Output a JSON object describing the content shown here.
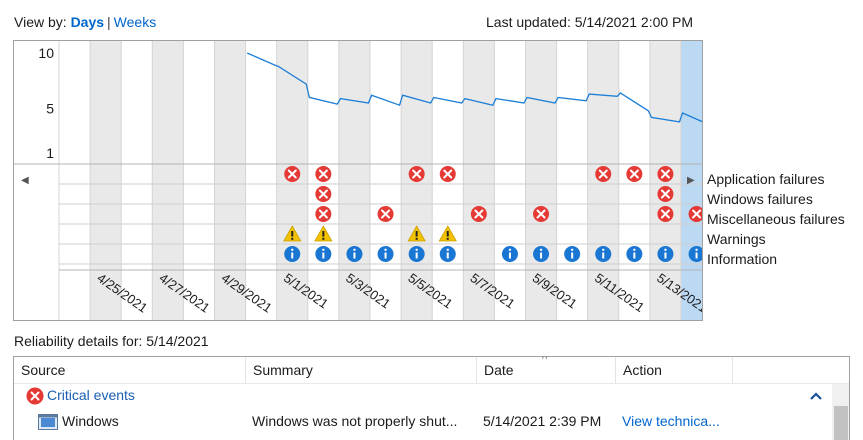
{
  "header": {
    "view_by_label": "View by:",
    "view_days": "Days",
    "view_separator": "|",
    "view_weeks": "Weeks",
    "last_updated": "Last updated: 5/14/2021 2:00 PM"
  },
  "chart_data": {
    "type": "line",
    "y_ticks": [
      "10",
      "5",
      "1"
    ],
    "ylim": [
      1,
      10
    ],
    "dates": [
      "4/24/2021",
      "4/25/2021",
      "4/26/2021",
      "4/27/2021",
      "4/28/2021",
      "4/29/2021",
      "4/30/2021",
      "5/1/2021",
      "5/2/2021",
      "5/3/2021",
      "5/4/2021",
      "5/5/2021",
      "5/6/2021",
      "5/7/2021",
      "5/8/2021",
      "5/9/2021",
      "5/10/2021",
      "5/11/2021",
      "5/12/2021",
      "5/13/2021",
      "5/14/2021"
    ],
    "x_tick_labels": [
      "4/25/2021",
      "4/27/2021",
      "4/29/2021",
      "5/1/2021",
      "5/3/2021",
      "5/5/2021",
      "5/7/2021",
      "5/9/2021",
      "5/11/2021",
      "5/13/2021"
    ],
    "stability_index": [
      [
        "4/30/2021",
        10.0
      ],
      [
        "4/30/2021",
        8.9
      ],
      [
        "5/1/2021",
        8.8
      ],
      [
        "5/1/2021",
        7.2
      ],
      [
        "5/2/2021",
        6.0
      ],
      [
        "5/2/2021",
        5.4
      ],
      [
        "5/3/2021",
        5.9
      ],
      [
        "5/3/2021",
        5.5
      ],
      [
        "5/4/2021",
        6.2
      ],
      [
        "5/4/2021",
        5.3
      ],
      [
        "5/5/2021",
        6.2
      ],
      [
        "5/5/2021",
        5.5
      ],
      [
        "5/6/2021",
        6.0
      ],
      [
        "5/6/2021",
        5.5
      ],
      [
        "5/7/2021",
        5.9
      ],
      [
        "5/7/2021",
        5.3
      ],
      [
        "5/8/2021",
        5.9
      ],
      [
        "5/8/2021",
        5.5
      ],
      [
        "5/9/2021",
        6.0
      ],
      [
        "5/9/2021",
        5.5
      ],
      [
        "5/10/2021",
        6.0
      ],
      [
        "5/10/2021",
        5.7
      ],
      [
        "5/11/2021",
        6.3
      ],
      [
        "5/11/2021",
        6.1
      ],
      [
        "5/12/2021",
        6.4
      ],
      [
        "5/12/2021",
        4.8
      ],
      [
        "5/13/2021",
        4.2
      ],
      [
        "5/13/2021",
        3.8
      ],
      [
        "5/14/2021",
        4.6
      ],
      [
        "5/14/2021",
        3.5
      ]
    ],
    "selected_date": "5/14/2021",
    "rows": [
      {
        "label": "Application failures",
        "kind": "error",
        "dates": [
          "5/1/2021",
          "5/2/2021",
          "5/5/2021",
          "5/6/2021",
          "5/11/2021",
          "5/12/2021",
          "5/13/2021"
        ]
      },
      {
        "label": "Windows failures",
        "kind": "error",
        "dates": [
          "5/2/2021",
          "5/13/2021"
        ]
      },
      {
        "label": "Miscellaneous failures",
        "kind": "error",
        "dates": [
          "5/2/2021",
          "5/4/2021",
          "5/7/2021",
          "5/9/2021",
          "5/13/2021",
          "5/14/2021"
        ]
      },
      {
        "label": "Warnings",
        "kind": "warning",
        "dates": [
          "5/1/2021",
          "5/2/2021",
          "5/5/2021",
          "5/6/2021"
        ]
      },
      {
        "label": "Information",
        "kind": "info",
        "dates": [
          "5/1/2021",
          "5/2/2021",
          "5/3/2021",
          "5/4/2021",
          "5/5/2021",
          "5/6/2021",
          "5/8/2021",
          "5/9/2021",
          "5/10/2021",
          "5/11/2021",
          "5/12/2021",
          "5/13/2021",
          "5/14/2021"
        ]
      }
    ],
    "colors": {
      "line": "#1c7ed6",
      "shade": "#e9e9e9",
      "selected": "#bcd9f3",
      "error": "#e53935",
      "warning": "#f2c200",
      "info": "#1976d2"
    }
  },
  "details": {
    "title": "Reliability details for: 5/14/2021",
    "columns": [
      "Source",
      "Summary",
      "Date",
      "Action"
    ],
    "group_label": "Critical events",
    "rows": [
      {
        "source": "Windows",
        "summary": "Windows was not properly shut...",
        "date": "5/14/2021 2:39 PM",
        "action": "View technica..."
      }
    ]
  }
}
